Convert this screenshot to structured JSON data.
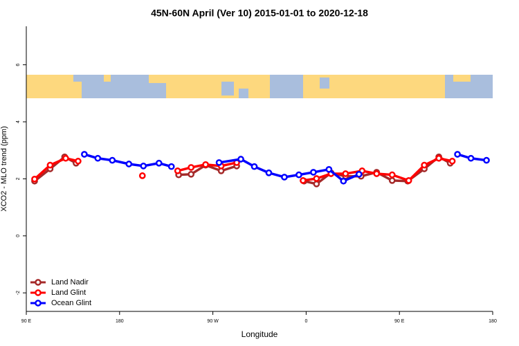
{
  "chart_data": {
    "type": "line",
    "title": "45N-60N April (Ver 10)   2015-01-01 to 2020-12-18",
    "x_label": "Longitude",
    "y_label": "XCO2 - MLO trend (ppm)",
    "xlim": [
      90,
      540
    ],
    "ylim": [
      -2.65,
      7.35
    ],
    "xticks": [
      {
        "value": 90,
        "label": "90 E"
      },
      180,
      {
        "value": 270,
        "label": "90 W"
      },
      {
        "value": 360,
        "label": "0"
      },
      {
        "value": 450,
        "label": "90 E"
      },
      {
        "value": 540,
        "label": "180"
      }
    ],
    "yticks": [
      -2,
      0,
      2,
      4,
      6
    ],
    "legend": "bottom-left",
    "series": [
      {
        "name": "Land Nadir",
        "color": "#a52a2a",
        "x": [
          98,
          113,
          127,
          138,
          null,
          237,
          249,
          263,
          278,
          293,
          null,
          358,
          370,
          384,
          398,
          413,
          428,
          443,
          458,
          474,
          488,
          499
        ],
        "values": [
          1.92,
          2.35,
          2.77,
          2.55,
          null,
          2.14,
          2.16,
          2.48,
          2.28,
          2.45,
          null,
          1.92,
          1.82,
          2.21,
          2.09,
          2.09,
          2.23,
          1.94,
          1.92,
          2.35,
          2.77,
          2.55
        ]
      },
      {
        "name": "Land Glint",
        "color": "#ff0000",
        "x": [
          98,
          113,
          128,
          140,
          null,
          202,
          null,
          236,
          249,
          263,
          278,
          293,
          null,
          357,
          370,
          384,
          398,
          414,
          428,
          443,
          459,
          474,
          488,
          501
        ],
        "values": [
          1.99,
          2.48,
          2.72,
          2.62,
          null,
          2.11,
          null,
          2.28,
          2.4,
          2.5,
          2.45,
          2.57,
          null,
          1.94,
          2.01,
          2.18,
          2.18,
          2.28,
          2.18,
          2.14,
          1.94,
          2.48,
          2.72,
          2.62
        ]
      },
      {
        "name": "Ocean Glint",
        "color": "#0000ff",
        "x": [
          146,
          159,
          173,
          189,
          203,
          218,
          230,
          null,
          276,
          297,
          310,
          324,
          339,
          353,
          367,
          382,
          396,
          411,
          null,
          506,
          519,
          534
        ],
        "values": [
          2.86,
          2.72,
          2.65,
          2.52,
          2.45,
          2.55,
          2.43,
          null,
          2.57,
          2.69,
          2.43,
          2.21,
          2.06,
          2.14,
          2.23,
          2.33,
          1.92,
          2.16,
          null,
          2.86,
          2.72,
          2.65
        ]
      }
    ]
  }
}
